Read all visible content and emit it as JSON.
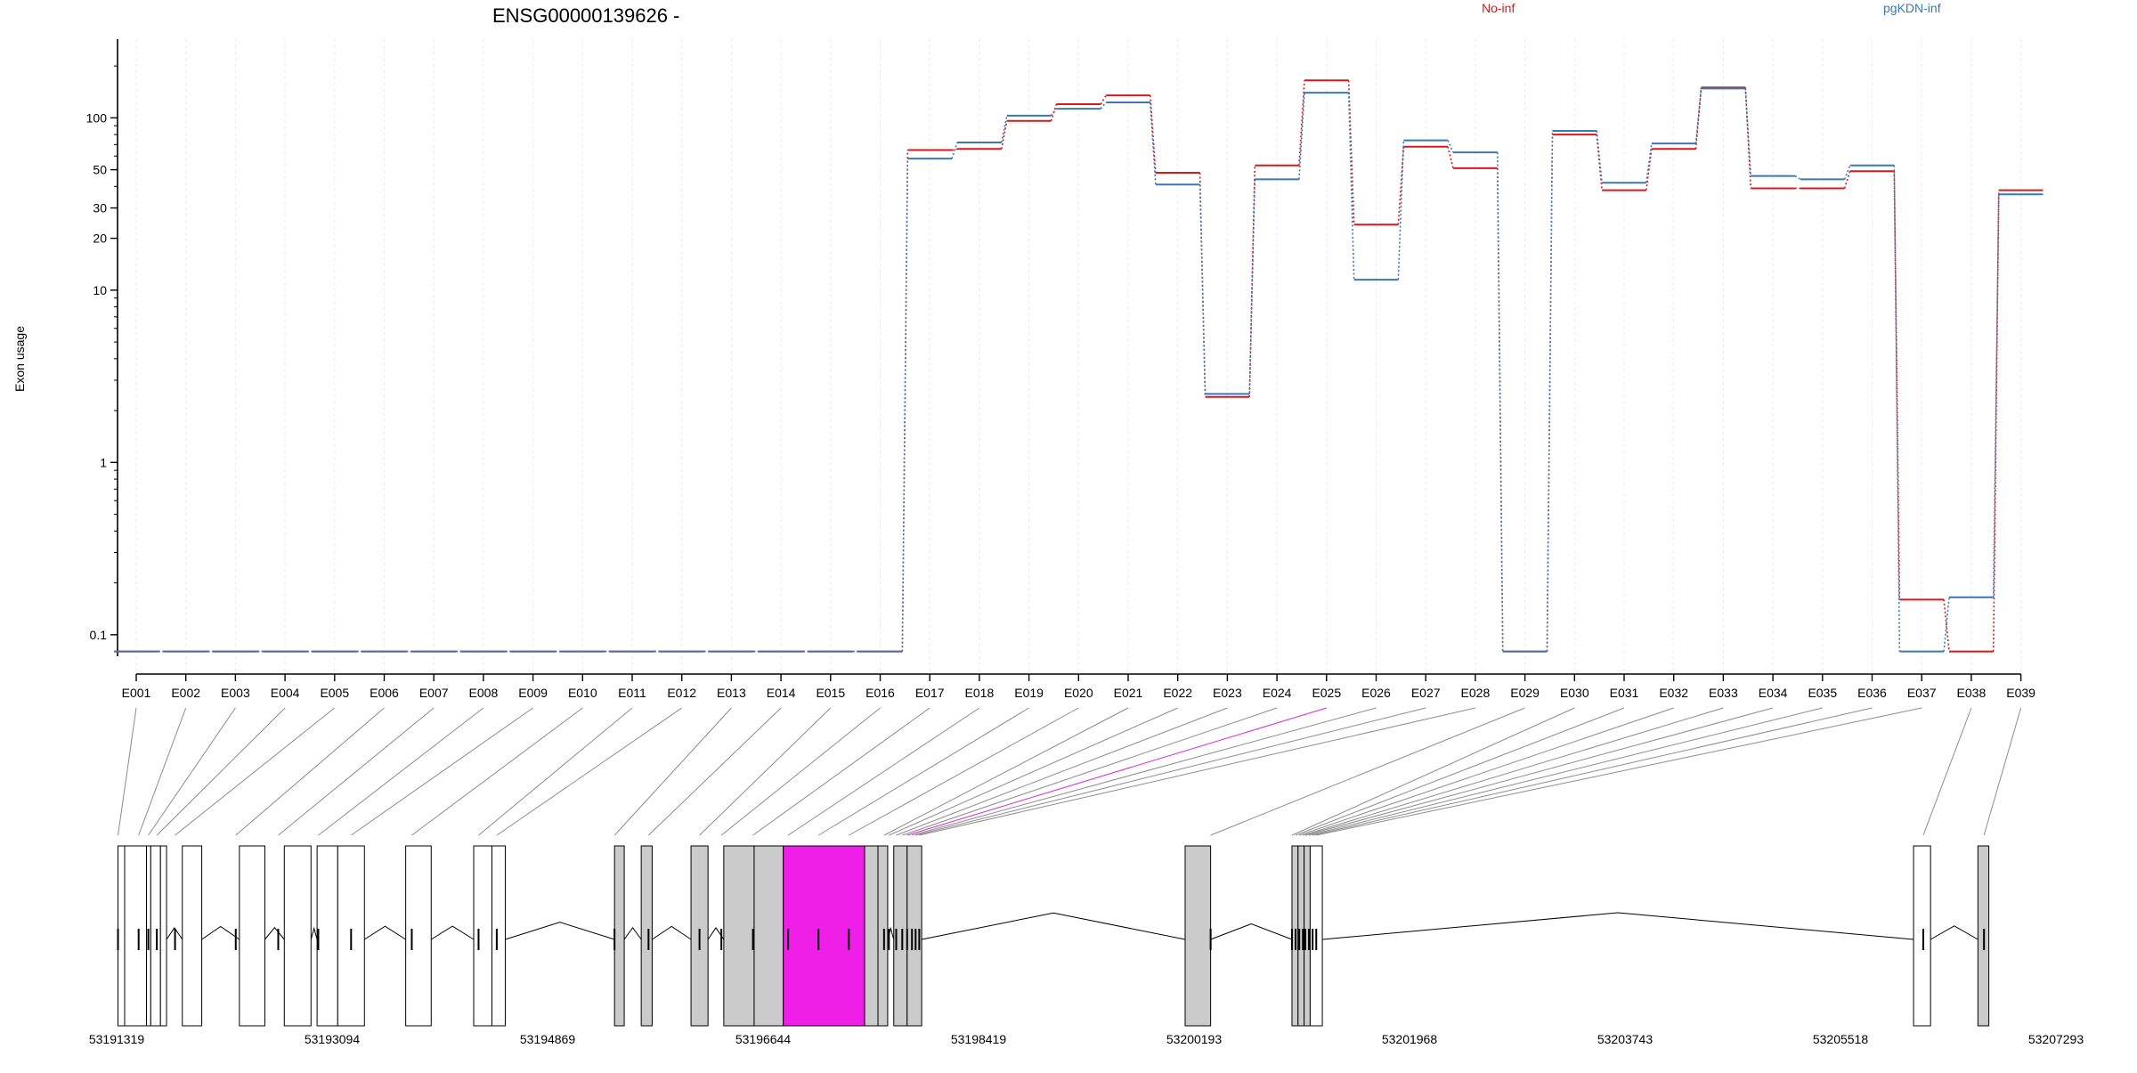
{
  "chart_data": {
    "type": "line",
    "title": "ENSG00000139626 -",
    "ylabel": "Exon usage",
    "yscale": "log",
    "ylim": [
      0.075,
      210
    ],
    "yticks": [
      0.1,
      1,
      10,
      20,
      30,
      50,
      100
    ],
    "ytick_labels": [
      "0.1",
      "1",
      "10",
      "20",
      "30",
      "50",
      "100"
    ],
    "categories": [
      "E001",
      "E002",
      "E003",
      "E004",
      "E005",
      "E006",
      "E007",
      "E008",
      "E009",
      "E010",
      "E011",
      "E012",
      "E013",
      "E014",
      "E015",
      "E016",
      "E017",
      "E018",
      "E019",
      "E020",
      "E021",
      "E022",
      "E023",
      "E024",
      "E025",
      "E026",
      "E027",
      "E028",
      "E029",
      "E030",
      "E031",
      "E032",
      "E033",
      "E034",
      "E035",
      "E036",
      "E037",
      "E038",
      "E039"
    ],
    "series": [
      {
        "name": "No-inf",
        "color": "#d7191c",
        "values": [
          0.08,
          0.08,
          0.08,
          0.08,
          0.08,
          0.08,
          0.08,
          0.08,
          0.08,
          0.08,
          0.08,
          0.08,
          0.08,
          0.08,
          0.08,
          0.08,
          65,
          66,
          96,
          120,
          135,
          48,
          2.4,
          53,
          165,
          24,
          68,
          51,
          0.08,
          80,
          38,
          66,
          150,
          39,
          39,
          49,
          0.16,
          0.08,
          38
        ]
      },
      {
        "name": "pgKDN-inf",
        "color": "#3a78b5",
        "values": [
          0.08,
          0.08,
          0.08,
          0.08,
          0.08,
          0.08,
          0.08,
          0.08,
          0.08,
          0.08,
          0.08,
          0.08,
          0.08,
          0.08,
          0.08,
          0.08,
          58,
          72,
          103,
          113,
          123,
          41,
          2.5,
          44,
          140,
          11.5,
          74,
          63,
          0.08,
          84,
          42,
          71,
          148,
          46,
          44,
          53,
          0.08,
          0.165,
          36
        ]
      }
    ],
    "exon_types": [
      "normal",
      "normal",
      "normal",
      "normal",
      "normal",
      "normal",
      "normal",
      "normal",
      "normal",
      "normal",
      "normal",
      "normal",
      "normal",
      "normal",
      "normal",
      "normal",
      "normal",
      "normal",
      "normal",
      "normal",
      "normal",
      "normal",
      "normal",
      "normal",
      "highlighted",
      "normal",
      "normal",
      "normal",
      "normal",
      "normal",
      "normal",
      "normal",
      "normal",
      "normal",
      "normal",
      "normal",
      "normal",
      "normal",
      "normal"
    ],
    "gene_coordinate_labels": [
      "53191319",
      "53193094",
      "53194869",
      "53196644",
      "53198419",
      "53200193",
      "53201968",
      "53203743",
      "53205518",
      "53207293"
    ],
    "gene_range": [
      53191319,
      53207293
    ],
    "gene_model_exons": [
      {
        "start": 53191330,
        "end": 53191385,
        "fill": "white"
      },
      {
        "start": 53191385,
        "end": 53191565,
        "fill": "white"
      },
      {
        "start": 53191565,
        "end": 53191600,
        "fill": "white"
      },
      {
        "start": 53191600,
        "end": 53191680,
        "fill": "white"
      },
      {
        "start": 53191680,
        "end": 53191730,
        "fill": "white"
      },
      {
        "start": 53191860,
        "end": 53192020,
        "fill": "white"
      },
      {
        "start": 53192330,
        "end": 53192540,
        "fill": "white"
      },
      {
        "start": 53192700,
        "end": 53192920,
        "fill": "white"
      },
      {
        "start": 53192970,
        "end": 53193140,
        "fill": "white"
      },
      {
        "start": 53193140,
        "end": 53193360,
        "fill": "white"
      },
      {
        "start": 53193700,
        "end": 53193910,
        "fill": "white"
      },
      {
        "start": 53194260,
        "end": 53194410,
        "fill": "white"
      },
      {
        "start": 53194410,
        "end": 53194520,
        "fill": "white"
      },
      {
        "start": 53195420,
        "end": 53195500,
        "fill": "gray"
      },
      {
        "start": 53195640,
        "end": 53195730,
        "fill": "gray"
      },
      {
        "start": 53196050,
        "end": 53196190,
        "fill": "gray"
      },
      {
        "start": 53196320,
        "end": 53196570,
        "fill": "gray"
      },
      {
        "start": 53196570,
        "end": 53196810,
        "fill": "gray"
      },
      {
        "start": 53196810,
        "end": 53197480,
        "fill": "#ef1fe8"
      },
      {
        "start": 53197480,
        "end": 53197590,
        "fill": "gray"
      },
      {
        "start": 53197590,
        "end": 53197670,
        "fill": "gray"
      },
      {
        "start": 53197720,
        "end": 53197830,
        "fill": "gray"
      },
      {
        "start": 53197830,
        "end": 53197950,
        "fill": "gray"
      },
      {
        "start": 53200120,
        "end": 53200330,
        "fill": "gray"
      },
      {
        "start": 53201000,
        "end": 53201050,
        "fill": "gray"
      },
      {
        "start": 53201050,
        "end": 53201100,
        "fill": "gray"
      },
      {
        "start": 53201100,
        "end": 53201150,
        "fill": "gray"
      },
      {
        "start": 53201150,
        "end": 53201250,
        "fill": "white"
      },
      {
        "start": 53206120,
        "end": 53206260,
        "fill": "white"
      },
      {
        "start": 53206650,
        "end": 53206740,
        "fill": "gray"
      }
    ],
    "exon_map_points": [
      53191330,
      53191500,
      53191580,
      53191650,
      53191800,
      53192300,
      53192650,
      53192980,
      53193250,
      53193750,
      53194300,
      53194450,
      53195420,
      53195700,
      53196120,
      53196300,
      53196560,
      53196850,
      53197100,
      53197350,
      53197640,
      53197680,
      53197740,
      53197790,
      53197830,
      53197870,
      53197900,
      53197930,
      53200330,
      53201000,
      53201030,
      53201060,
      53201090,
      53201110,
      53201140,
      53201170,
      53201200,
      53206200,
      53206700
    ]
  }
}
